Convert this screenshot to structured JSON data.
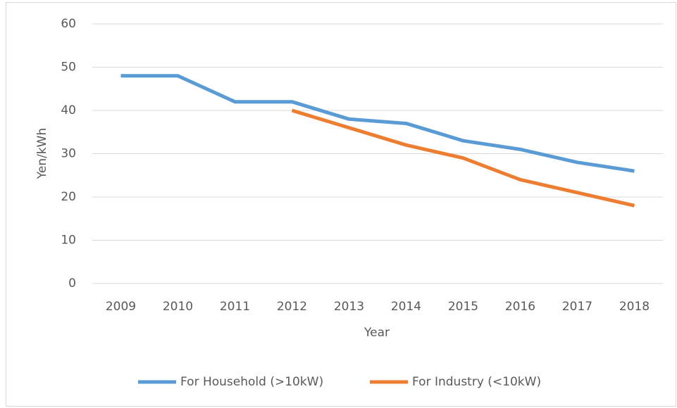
{
  "chart_data": {
    "type": "line",
    "categories": [
      "2009",
      "2010",
      "2011",
      "2012",
      "2013",
      "2014",
      "2015",
      "2016",
      "2017",
      "2018"
    ],
    "series": [
      {
        "name": "For Household (>10kW)",
        "color": "#5b9bd5",
        "values": [
          48,
          48,
          42,
          42,
          38,
          37,
          33,
          31,
          28,
          26
        ]
      },
      {
        "name": "For Industry (<10kW)",
        "color": "#ed7d31",
        "values": [
          null,
          null,
          null,
          40,
          36,
          32,
          29,
          24,
          21,
          18
        ]
      }
    ],
    "x_label": "Year",
    "y_label": "Yen/kWh",
    "ylim": [
      0,
      60
    ],
    "yticks": [
      0,
      10,
      20,
      30,
      40,
      50,
      60
    ],
    "grid": true,
    "legend": "bottom"
  }
}
